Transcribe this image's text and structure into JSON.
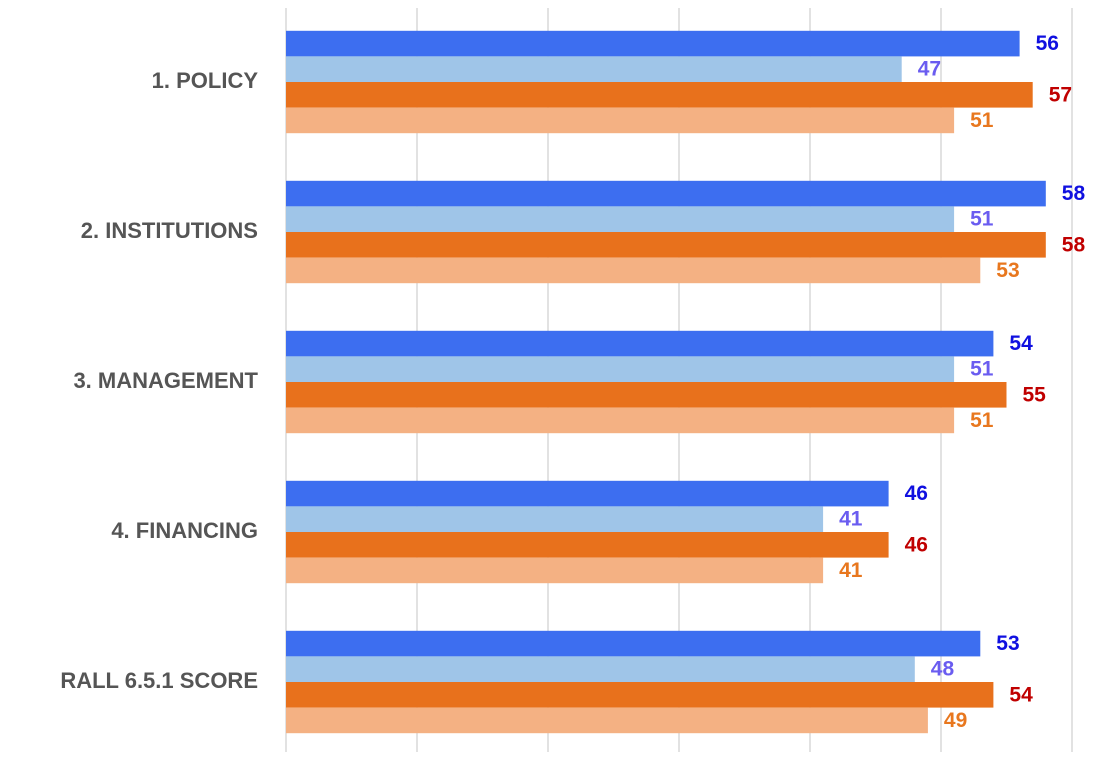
{
  "chart_data": {
    "type": "bar",
    "orientation": "horizontal",
    "categories": [
      "1. POLICY",
      "2. INSTITUTIONS",
      "3. MANAGEMENT",
      "4. FINANCING",
      "RALL 6.5.1 SCORE"
    ],
    "series": [
      {
        "color": "#3d6ef0",
        "label_color": "#1010e0",
        "values": [
          56,
          58,
          54,
          46,
          53
        ]
      },
      {
        "color": "#9fc5e8",
        "label_color": "#6a5cf0",
        "values": [
          47,
          51,
          51,
          41,
          48
        ]
      },
      {
        "color": "#e8711c",
        "label_color": "#c00000",
        "values": [
          57,
          58,
          55,
          46,
          54
        ]
      },
      {
        "color": "#f4b183",
        "label_color": "#e8771e",
        "values": [
          51,
          53,
          51,
          41,
          49
        ]
      }
    ],
    "xlim": [
      0,
      60
    ],
    "xticks": [
      0,
      10,
      20,
      30,
      40,
      50,
      60
    ],
    "grid": true
  }
}
